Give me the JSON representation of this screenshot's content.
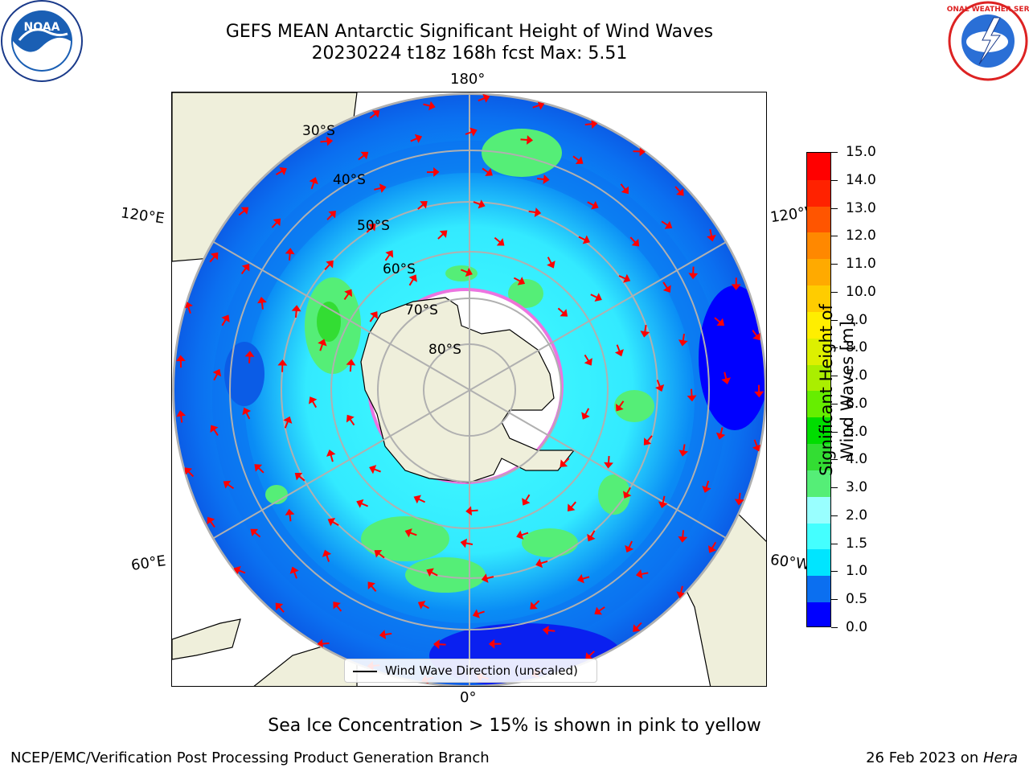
{
  "title": {
    "line1": "GEFS MEAN Antarctic Significant Height of Wind Waves",
    "line2": "20230224 t18z 168h fcst   Max: 5.51"
  },
  "map": {
    "meridian_labels": {
      "top": "180°",
      "bottom": "0°",
      "upper_left": "120°E",
      "upper_right": "120°W",
      "lower_left": "60°E",
      "lower_right": "60°W"
    },
    "parallel_labels": [
      "30°S",
      "40°S",
      "50°S",
      "60°S",
      "70°S",
      "80°S"
    ],
    "legend_label": "Wind Wave Direction (unscaled)"
  },
  "colorbar": {
    "label": "Significant Height of Wind Waves [m]",
    "ticks": [
      "15.0",
      "14.0",
      "13.0",
      "12.0",
      "11.0",
      "10.0",
      "9.0",
      "8.0",
      "7.0",
      "6.0",
      "5.0",
      "4.0",
      "3.0",
      "2.0",
      "1.5",
      "1.0",
      "0.5",
      "0.0"
    ],
    "colors": [
      "#0000ff",
      "#0b6ff0",
      "#00e5ff",
      "#44ffff",
      "#99ffff",
      "#55ee77",
      "#33dd33",
      "#00dd00",
      "#66ee00",
      "#aaee00",
      "#ddf000",
      "#ffee00",
      "#ffcc00",
      "#ffaa00",
      "#ff8800",
      "#ff5500",
      "#ff2200",
      "#ff0000"
    ]
  },
  "ice_note": "Sea Ice Concentration > 15% is shown in pink to yellow",
  "footer": {
    "left": "NCEP/EMC/Verification Post Processing Product Generation Branch",
    "right_prefix": "26 Feb 2023 on ",
    "right_machine": "Hera"
  },
  "logos": {
    "noaa": "NOAA",
    "nws": "NATIONAL WEATHER SERVICE"
  }
}
